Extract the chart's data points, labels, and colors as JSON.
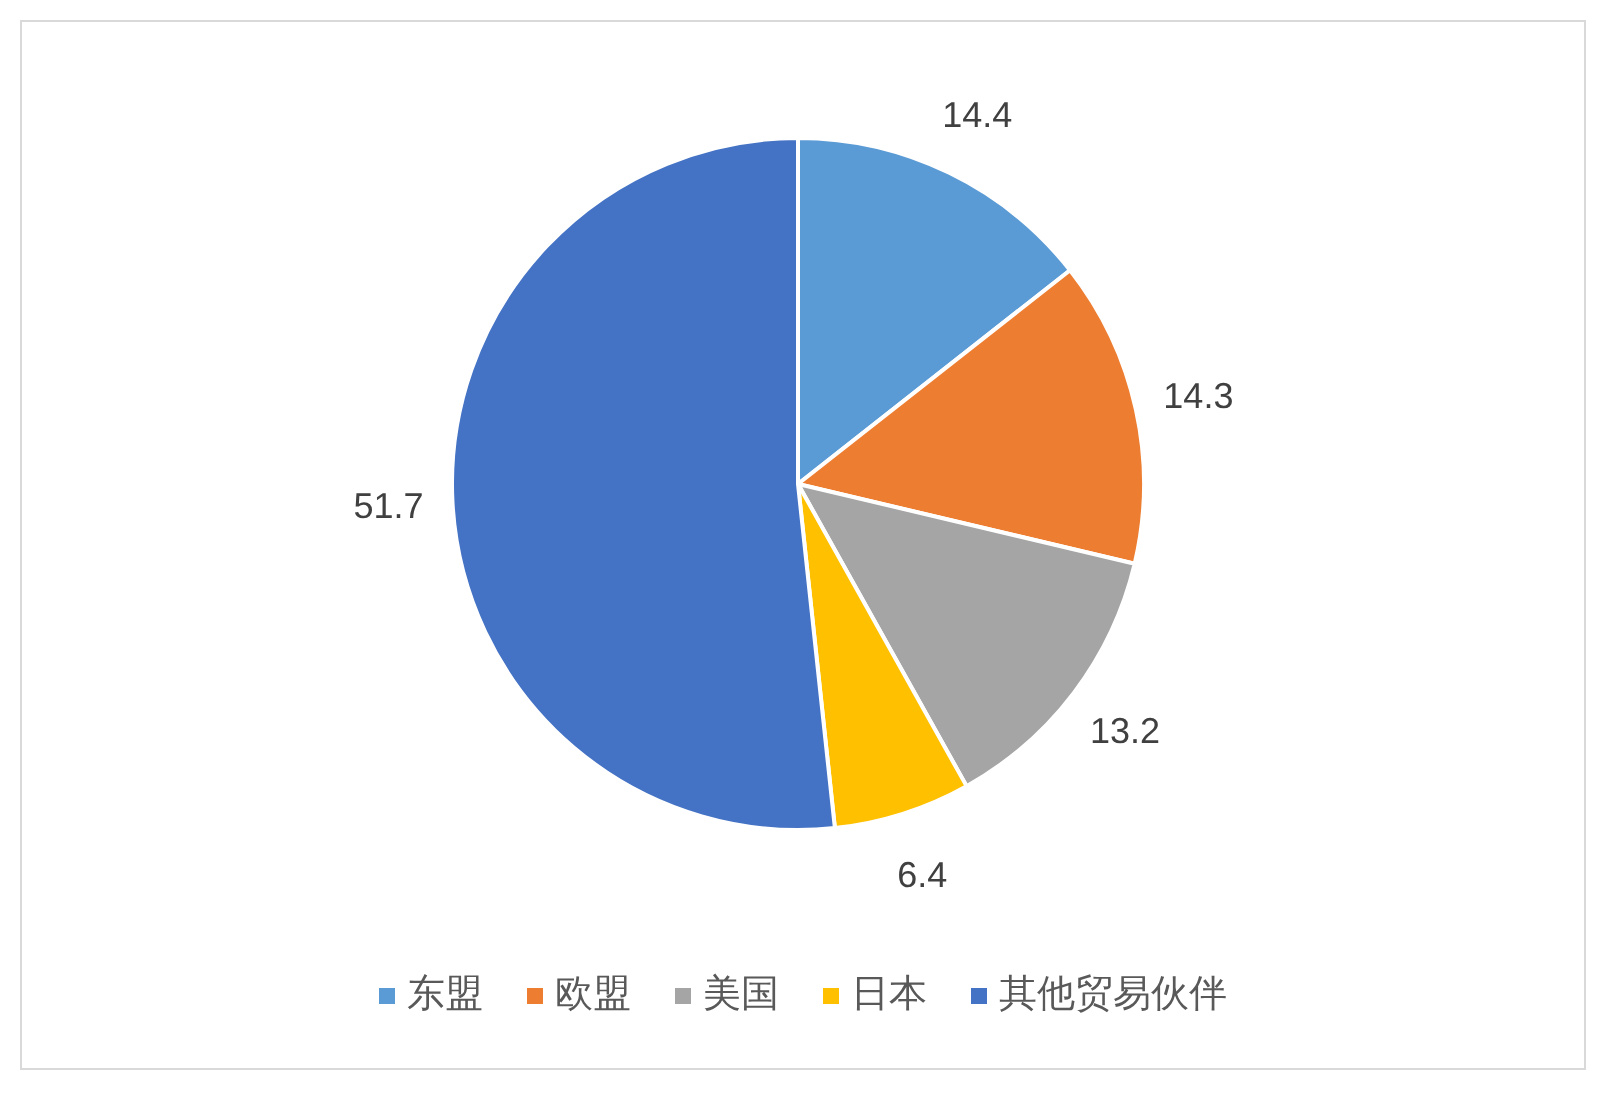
{
  "chart_data": {
    "type": "pie",
    "categories": [
      "东盟",
      "欧盟",
      "美国",
      "日本",
      "其他贸易伙伴"
    ],
    "values": [
      14.4,
      14.3,
      13.2,
      6.4,
      51.7
    ],
    "colors": [
      "#5b9bd5",
      "#ed7d31",
      "#a5a5a5",
      "#ffc000",
      "#4472c4"
    ],
    "data_labels": true,
    "legend": "bottom"
  }
}
